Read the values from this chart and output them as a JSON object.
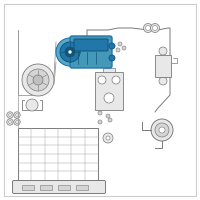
{
  "bg_color": "#ffffff",
  "line_color": "#7a7a7a",
  "line_color2": "#999999",
  "highlight_color": "#4499bb",
  "highlight_mid": "#2277aa",
  "highlight_dark": "#115577",
  "part_fill": "#e8e8e8",
  "part_fill2": "#d5d5d5",
  "white": "#ffffff"
}
